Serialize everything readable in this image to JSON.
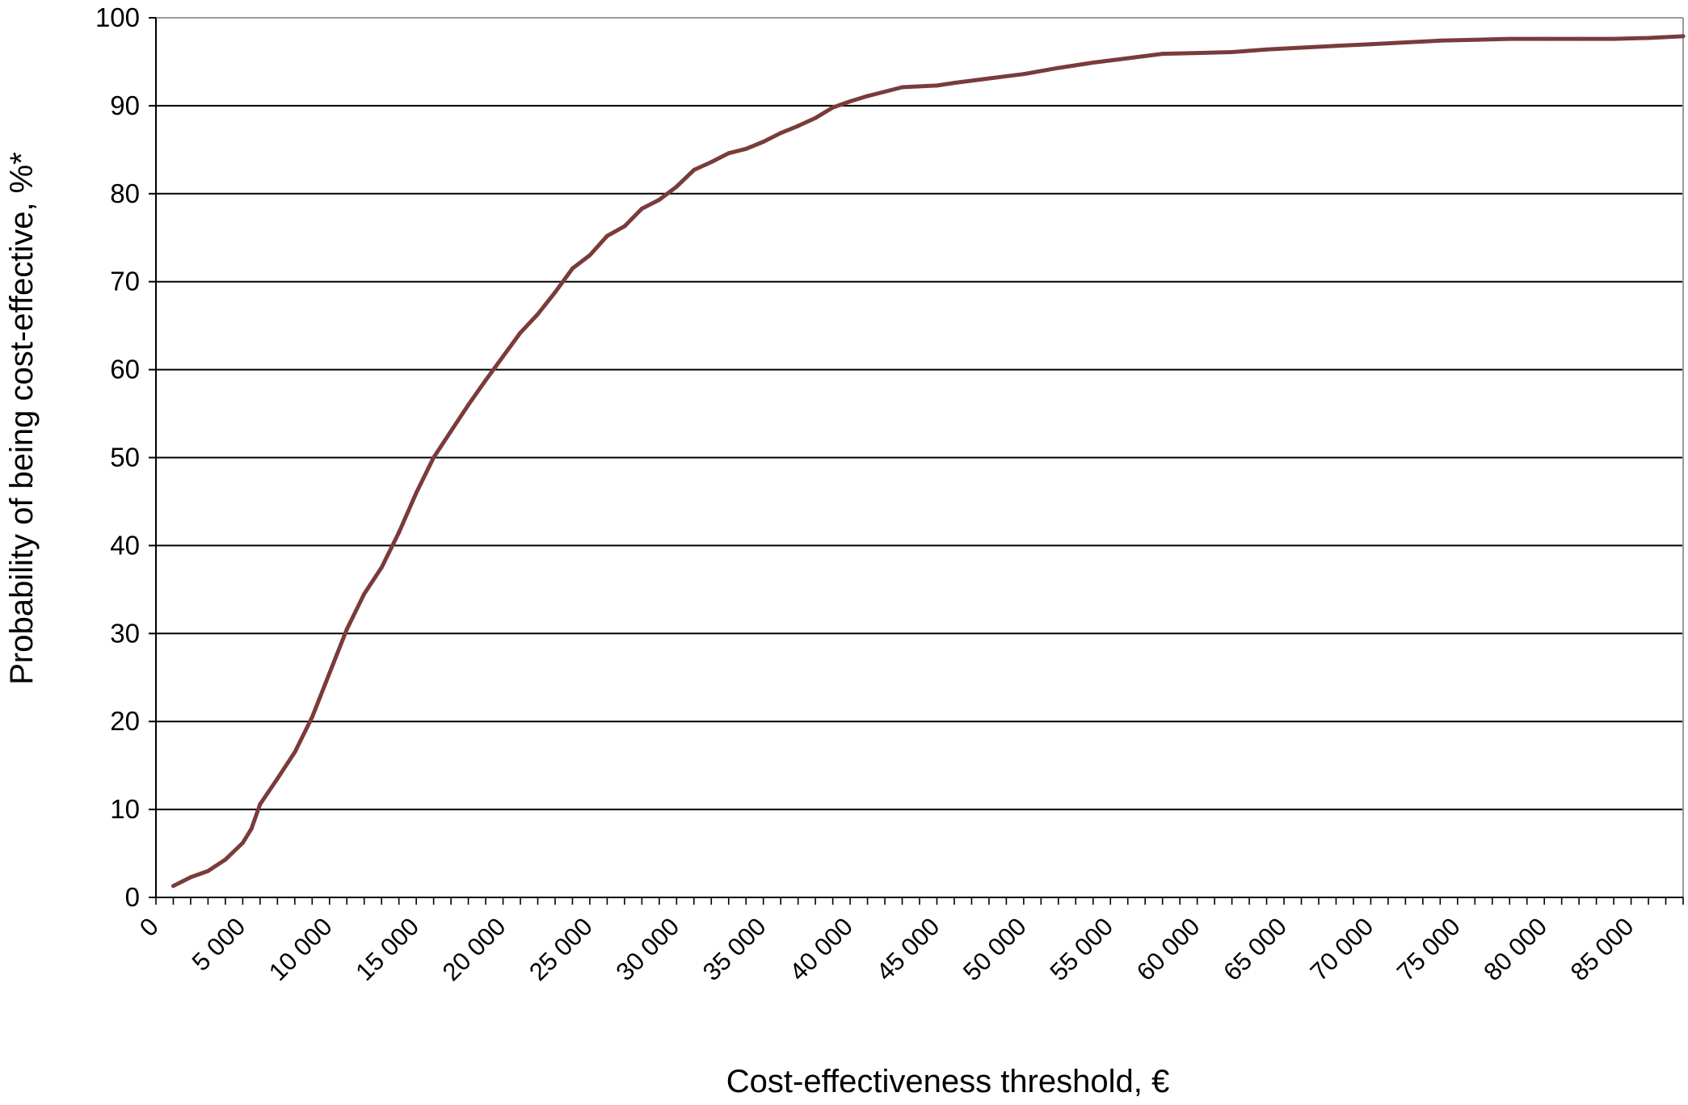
{
  "chart_data": {
    "type": "line",
    "title": "",
    "xlabel": "Cost-effectiveness threshold, €",
    "ylabel": "Probability of being cost-effective, %*",
    "xlim": [
      0,
      88000
    ],
    "ylim": [
      0,
      100
    ],
    "grid": "horizontal",
    "legend": "none",
    "y_ticks": [
      "0",
      "10",
      "20",
      "30",
      "40",
      "50",
      "60",
      "70",
      "80",
      "90",
      "100"
    ],
    "x_ticks": [
      {
        "value": 0,
        "label": "0"
      },
      {
        "value": 5000,
        "label": "5 000"
      },
      {
        "value": 10000,
        "label": "10 000"
      },
      {
        "value": 15000,
        "label": "15 000"
      },
      {
        "value": 20000,
        "label": "20 000"
      },
      {
        "value": 25000,
        "label": "25 000"
      },
      {
        "value": 30000,
        "label": "30 000"
      },
      {
        "value": 35000,
        "label": "35 000"
      },
      {
        "value": 40000,
        "label": "40 000"
      },
      {
        "value": 45000,
        "label": "45 000"
      },
      {
        "value": 50000,
        "label": "50 000"
      },
      {
        "value": 55000,
        "label": "55 000"
      },
      {
        "value": 60000,
        "label": "60 000"
      },
      {
        "value": 65000,
        "label": "65 000"
      },
      {
        "value": 70000,
        "label": "70 000"
      },
      {
        "value": 75000,
        "label": "75 000"
      },
      {
        "value": 80000,
        "label": "80 000"
      },
      {
        "value": 85000,
        "label": "85 000"
      }
    ],
    "series": [
      {
        "color": "#7a3b3b",
        "x": [
          1000,
          2000,
          3000,
          4000,
          5000,
          5500,
          6000,
          7000,
          8000,
          9000,
          10000,
          11000,
          12000,
          13000,
          14000,
          15000,
          16000,
          17000,
          18000,
          19000,
          20000,
          21000,
          22000,
          23000,
          24000,
          25000,
          26000,
          27000,
          28000,
          29000,
          30000,
          31000,
          32000,
          33000,
          34000,
          35000,
          36000,
          37000,
          38000,
          39000,
          40000,
          41000,
          42000,
          43000,
          44000,
          45000,
          46000,
          48000,
          50000,
          52000,
          54000,
          56000,
          58000,
          60000,
          62000,
          64000,
          66000,
          68000,
          70000,
          72000,
          74000,
          76000,
          78000,
          80000,
          82000,
          84000,
          86000,
          88000
        ],
        "y": [
          1.3,
          2.3,
          3.0,
          4.3,
          6.2,
          7.8,
          10.6,
          13.5,
          16.5,
          20.5,
          25.5,
          30.5,
          34.5,
          37.5,
          41.5,
          46.0,
          50.0,
          53.0,
          56.0,
          58.8,
          61.5,
          64.2,
          66.3,
          68.8,
          71.5,
          73.0,
          75.2,
          76.3,
          78.3,
          79.3,
          80.8,
          82.7,
          83.6,
          84.6,
          85.1,
          85.9,
          86.9,
          87.7,
          88.6,
          89.8,
          90.5,
          91.1,
          91.6,
          92.1,
          92.2,
          92.3,
          92.6,
          93.1,
          93.6,
          94.3,
          94.9,
          95.4,
          95.9,
          96.0,
          96.1,
          96.4,
          96.6,
          96.8,
          97.0,
          97.2,
          97.4,
          97.5,
          97.6,
          97.6,
          97.6,
          97.6,
          97.7,
          97.9
        ]
      }
    ]
  }
}
